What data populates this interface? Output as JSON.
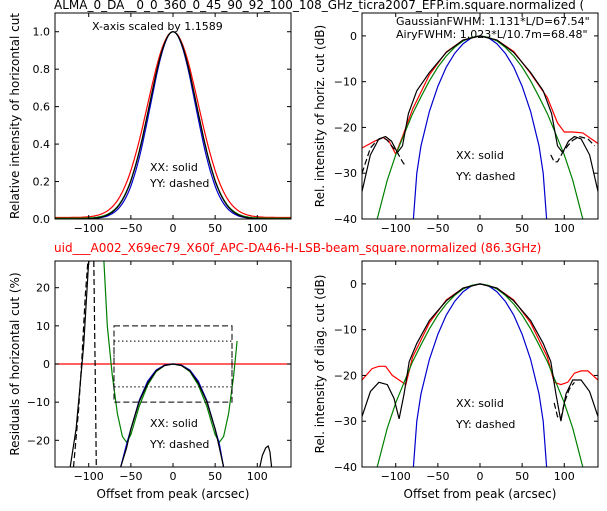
{
  "top_title": "ALMA_0_DA__0_0_360_0_45_90_92_100_108_GHz_ticra2007_EFP.im.square.normalized (",
  "mid_title": "uid___A002_X69ec79_X60f_APC-DA46-H-LSB-beam_square.normalized (86.3GHz)",
  "colors": {
    "red": "#ff0000",
    "blue": "#0000cc",
    "green": "#008000",
    "black": "#000000",
    "mid_title": "#ff0000"
  },
  "chart_data": [
    {
      "id": "tl",
      "type": "line",
      "ylabel": "Relative intensity of horizontal cut",
      "xlim": [
        -140,
        140
      ],
      "ylim": [
        0,
        1.1
      ],
      "xticks": [
        -100,
        -50,
        0,
        50,
        100
      ],
      "yticks": [
        0.0,
        0.2,
        0.4,
        0.6,
        0.8,
        1.0
      ],
      "ytick_labels": [
        "0.0",
        "0.2",
        "0.4",
        "0.6",
        "0.8",
        "1.0"
      ],
      "annotations": [
        "X-axis scaled by 1.1589",
        "XX: solid",
        "YY: dashed"
      ],
      "series": [
        {
          "color": "red",
          "style": "solid",
          "fwhm": 71,
          "floor": 0.008
        },
        {
          "color": "blue",
          "style": "solid",
          "fwhm": 63,
          "floor": 0.002
        },
        {
          "color": "green",
          "style": "solid",
          "fwhm": 66,
          "floor": 0.004
        },
        {
          "color": "black",
          "style": "solid",
          "fwhm": 66,
          "floor": 0.0
        }
      ]
    },
    {
      "id": "tr",
      "type": "line",
      "ylabel": "Rel. intensity of horiz. cut (dB)",
      "xlim": [
        -140,
        140
      ],
      "ylim": [
        -40,
        5
      ],
      "xticks": [
        -100,
        -50,
        0,
        50,
        100
      ],
      "yticks": [
        0,
        -10,
        -20,
        -30,
        -40
      ],
      "ytick_labels": [
        "0",
        "−10",
        "−20",
        "−30",
        "−40"
      ],
      "annotations": [
        "XX: solid",
        "YY: dashed"
      ],
      "legend": [
        {
          "text": "GaussianFWHM: 1.131*L/D=67.54\"",
          "color": "green"
        },
        {
          "text": "AiryFWHM: 1.023*L/10.7m=68.48\"",
          "color": "blue"
        }
      ],
      "series": [
        {
          "name": "red",
          "x": [
            -140,
            -125,
            -115,
            -108,
            -100,
            -92,
            -80,
            -60,
            -40,
            -20,
            0,
            20,
            40,
            60,
            80,
            92,
            100,
            110,
            122,
            132,
            140
          ],
          "y": [
            -24.5,
            -23,
            -22.2,
            -23,
            -25.8,
            -22,
            -16,
            -8.5,
            -3.5,
            -0.9,
            0,
            -0.9,
            -3.4,
            -8.2,
            -13.5,
            -19,
            -21,
            -21,
            -21.2,
            -22.5,
            -23.5
          ]
        },
        {
          "name": "blue",
          "x": [
            -79,
            -75,
            -70,
            -60,
            -50,
            -40,
            -30,
            -20,
            -10,
            0,
            10,
            20,
            30,
            40,
            50,
            60,
            70,
            75,
            79
          ],
          "y": [
            -40,
            -30,
            -24,
            -16.5,
            -11,
            -6.8,
            -3.8,
            -1.7,
            -0.4,
            0,
            -0.4,
            -1.7,
            -3.8,
            -6.8,
            -11,
            -16.5,
            -24,
            -30,
            -40
          ]
        },
        {
          "name": "green",
          "x": [
            -122,
            -110,
            -100,
            -90,
            -80,
            -70,
            -60,
            -50,
            -40,
            -30,
            -20,
            -10,
            0,
            10,
            20,
            30,
            40,
            50,
            60,
            70,
            80,
            90,
            100,
            110,
            122
          ],
          "y": [
            -40,
            -31.5,
            -26,
            -21.5,
            -17,
            -13.3,
            -9.8,
            -6.8,
            -4.4,
            -2.5,
            -1.1,
            -0.3,
            0,
            -0.3,
            -1.1,
            -2.5,
            -4.4,
            -6.8,
            -9.8,
            -13.3,
            -17,
            -21.5,
            -26,
            -31.5,
            -40
          ]
        },
        {
          "name": "black",
          "x": [
            -140,
            -130,
            -120,
            -112,
            -105,
            -98,
            -92,
            -85,
            -75,
            -60,
            -40,
            -20,
            0,
            20,
            40,
            60,
            75,
            85,
            92,
            98,
            105,
            112,
            120,
            130,
            140
          ],
          "y": [
            -34,
            -26,
            -22.5,
            -22,
            -23,
            -25.5,
            -24,
            -17,
            -12,
            -8,
            -3.6,
            -0.9,
            0,
            -0.9,
            -3.6,
            -8,
            -12,
            -17,
            -24,
            -25.5,
            -23,
            -22,
            -22.5,
            -26,
            -34
          ]
        },
        {
          "name": "black-dashed",
          "style": "dashed",
          "x": [
            -140,
            -130,
            -122,
            -115,
            -110,
            -104,
            -98,
            -92,
            -88
          ],
          "y": [
            -30,
            -24.5,
            -22.8,
            -22.2,
            -22.8,
            -24.2,
            -25.5,
            -27.5,
            -28.5
          ]
        },
        {
          "name": "black-dashed-r",
          "style": "dashed",
          "x": [
            84,
            88,
            92,
            98,
            104,
            110,
            118,
            128,
            136
          ],
          "y": [
            -26,
            -27.5,
            -27.5,
            -25.5,
            -24,
            -22.8,
            -22,
            -22.5,
            -24
          ]
        }
      ]
    },
    {
      "id": "bl",
      "type": "line",
      "ylabel": "Residuals of horizontal cut (%)",
      "xlabel": "Offset from peak (arcsec)",
      "xlim": [
        -140,
        140
      ],
      "ylim": [
        -27,
        27
      ],
      "xticks": [
        -100,
        -50,
        0,
        50,
        100
      ],
      "yticks": [
        20,
        10,
        0,
        -10,
        -20
      ],
      "ytick_labels": [
        "20",
        "10",
        "0",
        "−10",
        "−20"
      ],
      "xtick_labels": [
        "−100",
        "−50",
        "0",
        "50",
        "100"
      ],
      "annotations": [
        "XX: solid",
        "YY: dashed"
      ],
      "boxes": [
        {
          "x0": -70,
          "x1": 70,
          "y0": -10,
          "y1": 10,
          "style": "dashed"
        },
        {
          "x0": -70,
          "x1": 70,
          "y0": -6,
          "y1": 6,
          "style": "dotted"
        }
      ],
      "series": [
        {
          "name": "red",
          "x": [
            -140,
            140
          ],
          "y": [
            0,
            0
          ]
        },
        {
          "name": "green",
          "x": [
            -82,
            -78,
            -72,
            -66,
            -60,
            -55,
            -50,
            -40,
            -30,
            -20,
            -10,
            0,
            10,
            20,
            30,
            40,
            50,
            55,
            60,
            66,
            72,
            76
          ],
          "y": [
            27,
            10,
            -3,
            -13,
            -19,
            -20.5,
            -18.5,
            -11,
            -5.5,
            -2,
            -0.4,
            0,
            -0.4,
            -2,
            -5.5,
            -11,
            -18.5,
            -20.5,
            -19,
            -13,
            -3,
            6
          ]
        },
        {
          "name": "blue",
          "x": [
            -62,
            -55,
            -50,
            -40,
            -30,
            -20,
            -10,
            0,
            10,
            20,
            30,
            40,
            50,
            55,
            60
          ],
          "y": [
            -27,
            -21,
            -17,
            -9.5,
            -4.5,
            -1.6,
            -0.3,
            0,
            -0.3,
            -1.6,
            -4.5,
            -9.5,
            -17,
            -21,
            -27
          ]
        },
        {
          "name": "black",
          "x": [
            -62,
            -55,
            -50,
            -40,
            -30,
            -20,
            -10,
            0,
            10,
            20,
            30,
            40,
            50,
            55,
            60
          ],
          "y": [
            -27,
            -22,
            -17,
            -9.8,
            -5,
            -1.8,
            -0.4,
            0,
            -0.4,
            -1.8,
            -5,
            -9.8,
            -17,
            -22,
            -27
          ]
        },
        {
          "name": "black-left",
          "x": [
            -122,
            -115,
            -110,
            -106,
            -103,
            -100,
            -97
          ],
          "y": [
            -27,
            -17,
            -5,
            5,
            16,
            27,
            27
          ]
        },
        {
          "name": "black-right",
          "x": [
            103,
            106,
            110,
            113,
            115,
            117
          ],
          "y": [
            -27,
            -24,
            -22,
            -21.5,
            -23,
            -27
          ]
        },
        {
          "name": "black-dashed-l",
          "style": "dashed",
          "x": [
            -118,
            -112,
            -108,
            -104,
            -101
          ],
          "y": [
            -27,
            -12,
            2,
            18,
            27
          ]
        },
        {
          "name": "black-dashed-r",
          "style": "dashed",
          "x": [
            -94,
            -93,
            -92,
            -91
          ],
          "y": [
            27,
            10,
            -8,
            -27
          ]
        }
      ]
    },
    {
      "id": "br",
      "type": "line",
      "ylabel": "Rel. intensity of diag. cut (dB)",
      "xlabel": "Offset from peak (arcsec)",
      "xlim": [
        -140,
        140
      ],
      "ylim": [
        -40,
        5
      ],
      "xticks": [
        -100,
        -50,
        0,
        50,
        100
      ],
      "yticks": [
        0,
        -10,
        -20,
        -30,
        -40
      ],
      "ytick_labels": [
        "0",
        "−10",
        "−20",
        "−30",
        "−40"
      ],
      "xtick_labels": [
        "−100",
        "−50",
        "0",
        "50",
        "100"
      ],
      "annotations": [
        "XX: solid",
        "YY: dashed"
      ],
      "series": [
        {
          "name": "red",
          "x": [
            -140,
            -128,
            -120,
            -112,
            -104,
            -96,
            -88,
            -80,
            -60,
            -40,
            -20,
            0,
            20,
            40,
            60,
            80,
            88,
            96,
            104,
            112,
            120,
            128,
            140
          ],
          "y": [
            -21,
            -18.5,
            -18,
            -18,
            -20,
            -21,
            -22,
            -16,
            -8.5,
            -3.5,
            -0.9,
            0,
            -0.9,
            -3.5,
            -8.5,
            -16,
            -21.5,
            -22,
            -21.5,
            -19.5,
            -19,
            -19,
            -21
          ]
        },
        {
          "name": "blue",
          "x": [
            -79,
            -75,
            -70,
            -60,
            -50,
            -40,
            -30,
            -20,
            -10,
            0,
            10,
            20,
            30,
            40,
            50,
            60,
            70,
            75,
            79
          ],
          "y": [
            -40,
            -30,
            -24,
            -16.5,
            -11,
            -6.8,
            -3.8,
            -1.7,
            -0.4,
            0,
            -0.4,
            -1.7,
            -3.8,
            -6.8,
            -11,
            -16.5,
            -24,
            -30,
            -40
          ]
        },
        {
          "name": "green",
          "x": [
            -122,
            -110,
            -100,
            -90,
            -80,
            -70,
            -60,
            -50,
            -40,
            -30,
            -20,
            -10,
            0,
            10,
            20,
            30,
            40,
            50,
            60,
            70,
            80,
            90,
            100,
            110,
            122
          ],
          "y": [
            -40,
            -31.5,
            -26,
            -21.5,
            -17,
            -13.3,
            -9.8,
            -6.8,
            -4.4,
            -2.5,
            -1.1,
            -0.3,
            0,
            -0.3,
            -1.1,
            -2.5,
            -4.4,
            -6.8,
            -9.8,
            -13.3,
            -17,
            -21.5,
            -26,
            -31.5,
            -40
          ]
        },
        {
          "name": "black",
          "x": [
            -140,
            -130,
            -120,
            -110,
            -102,
            -96,
            -90,
            -84,
            -75,
            -60,
            -40,
            -20,
            0,
            20,
            40,
            60,
            75,
            84,
            90,
            96,
            102,
            110,
            120,
            130,
            140
          ],
          "y": [
            -29,
            -23.5,
            -21.5,
            -22,
            -25,
            -29.5,
            -24,
            -17,
            -13,
            -8,
            -3.7,
            -0.9,
            0,
            -0.9,
            -3.7,
            -8,
            -13,
            -17,
            -24,
            -30,
            -24,
            -21,
            -21,
            -23.5,
            -29
          ]
        },
        {
          "name": "black-dashed-r",
          "style": "dashed",
          "x": [
            88,
            92,
            96,
            100,
            106,
            112
          ],
          "y": [
            -26,
            -29,
            -29.5,
            -26,
            -23,
            -21.5
          ]
        }
      ]
    }
  ]
}
